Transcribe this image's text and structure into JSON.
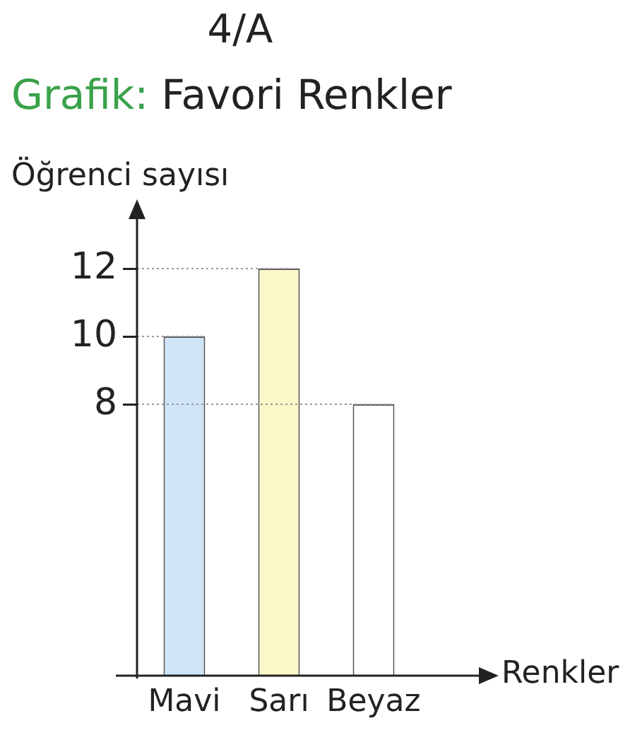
{
  "chart_data": {
    "type": "bar",
    "title": "4/A",
    "subtitle": "Grafik: Favori Renkler",
    "xlabel": "Renkler",
    "ylabel": "Öğrenci sayısı",
    "categories": [
      "Mavi",
      "Sarı",
      "Beyaz"
    ],
    "values": [
      10,
      12,
      8
    ],
    "colors": [
      "#cfe4f7",
      "#fcf7c8",
      "#ffffff"
    ],
    "ylim": [
      0,
      13.5
    ],
    "yticks": [
      8,
      10,
      12
    ],
    "ref_lines": [
      {
        "axis": "y",
        "value": 12,
        "color": "#999999",
        "line_style": "dotted"
      },
      {
        "axis": "y",
        "value": 10,
        "color": "#999999",
        "line_style": "dotted"
      },
      {
        "axis": "y",
        "value": 8,
        "color": "#999999",
        "line_style": "dotted"
      }
    ],
    "legend": false
  }
}
